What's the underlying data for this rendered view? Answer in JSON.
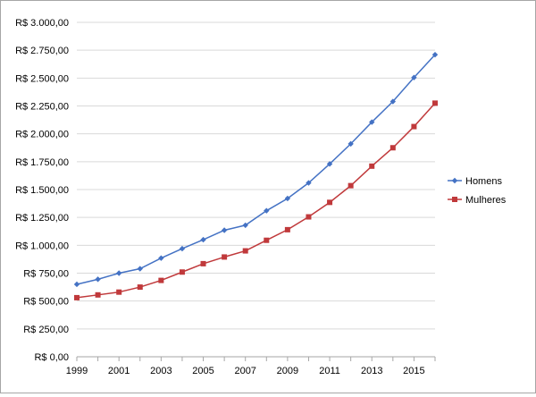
{
  "chart_data": {
    "type": "line",
    "x": [
      1999,
      2000,
      2001,
      2002,
      2003,
      2004,
      2005,
      2006,
      2007,
      2008,
      2009,
      2010,
      2011,
      2012,
      2013,
      2014,
      2015,
      2016
    ],
    "x_tick_labels": [
      "1999",
      "2001",
      "2003",
      "2005",
      "2007",
      "2009",
      "2011",
      "2013",
      "2015"
    ],
    "x_tick_values": [
      1999,
      2001,
      2003,
      2005,
      2007,
      2009,
      2011,
      2013,
      2015
    ],
    "y_tick_labels": [
      "R$ 0,00",
      "R$ 250,00",
      "R$ 500,00",
      "R$ 750,00",
      "R$ 1.000,00",
      "R$ 1.250,00",
      "R$ 1.500,00",
      "R$ 1.750,00",
      "R$ 2.000,00",
      "R$ 2.250,00",
      "R$ 2.500,00",
      "R$ 2.750,00",
      "R$ 3.000,00"
    ],
    "ylim": [
      0,
      3000
    ],
    "xlim": [
      1999,
      2016
    ],
    "grid": "horizontal",
    "legend_position": "right",
    "series": [
      {
        "name": "Homens",
        "color": "#4472c4",
        "marker": "diamond",
        "values": [
          650,
          695,
          750,
          790,
          885,
          970,
          1050,
          1135,
          1180,
          1310,
          1420,
          1560,
          1730,
          1910,
          2105,
          2290,
          2505,
          2710
        ]
      },
      {
        "name": "Mulheres",
        "color": "#c0393b",
        "marker": "square",
        "values": [
          530,
          555,
          580,
          625,
          685,
          760,
          835,
          895,
          950,
          1045,
          1140,
          1255,
          1385,
          1535,
          1710,
          1875,
          2065,
          2275
        ]
      }
    ]
  }
}
